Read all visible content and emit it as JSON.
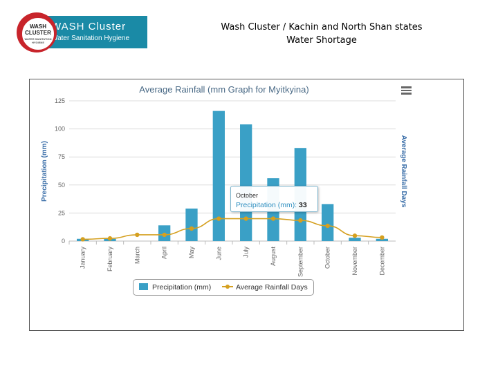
{
  "logo": {
    "seal_line1": "WASH",
    "seal_line2": "CLUSTER",
    "seal_line3": "WATER SANITATION HYGIENE",
    "title": "WASH Cluster",
    "subtitle": "Water Sanitation Hygiene"
  },
  "header": {
    "line1": "Wash Cluster / Kachin and North Shan states",
    "line2": "Water Shortage"
  },
  "colors": {
    "bar": "#3aa0c6",
    "line": "#d5a020",
    "axis_title": "#3a6ea8",
    "chart_title": "#4a6a86"
  },
  "chart_data": {
    "type": "bar",
    "title": "Average Rainfall (mm Graph for Myitkyina)",
    "ylabel": "Precipitation (mm)",
    "y2label": "Average Rainfall Days",
    "ylim": [
      0,
      125
    ],
    "yticks": [
      0,
      25,
      50,
      75,
      100,
      125
    ],
    "grid": true,
    "categories": [
      "January",
      "February",
      "March",
      "April",
      "May",
      "June",
      "July",
      "August",
      "September",
      "October",
      "November",
      "December"
    ],
    "series": [
      {
        "name": "Precipitation (mm)",
        "type": "bar",
        "values": [
          2,
          2,
          0,
          14,
          29,
          116,
          104,
          56,
          83,
          33,
          3,
          2
        ]
      },
      {
        "name": "Average Rainfall Days",
        "type": "line",
        "values": [
          1.0,
          1.5,
          3.5,
          3.5,
          7.0,
          12.5,
          12.5,
          12.5,
          11.5,
          8.5,
          3.0,
          2.0
        ]
      }
    ],
    "legend": "bottom-center",
    "tooltip": {
      "category": "October",
      "series": "Precipitation (mm):",
      "value": "33"
    }
  }
}
